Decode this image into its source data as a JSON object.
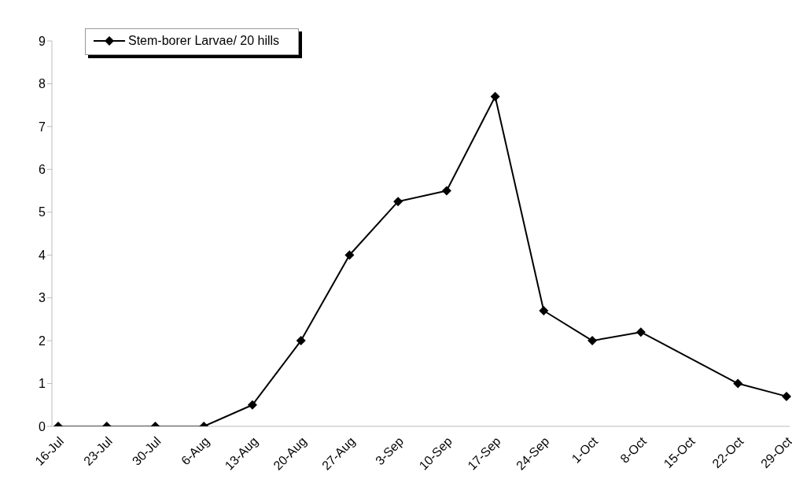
{
  "chart_data": {
    "type": "line",
    "categories": [
      "16-Jul",
      "23-Jul",
      "30-Jul",
      "6-Aug",
      "13-Aug",
      "20-Aug",
      "27-Aug",
      "3-Sep",
      "10-Sep",
      "17-Sep",
      "24-Sep",
      "1-Oct",
      "8-Oct",
      "15-Oct",
      "22-Oct",
      "29-Oct"
    ],
    "series": [
      {
        "name": "Stem-borer Larvae/ 20 hills",
        "color": "#000000",
        "values": [
          0,
          0,
          0,
          0,
          0.5,
          2,
          4,
          5.25,
          5.5,
          7.7,
          2.7,
          2,
          2.2,
          null,
          1,
          0.7
        ]
      }
    ],
    "ylim": [
      0,
      9
    ],
    "yticks": [
      0,
      1,
      2,
      3,
      4,
      5,
      6,
      7,
      8,
      9
    ],
    "grid": false,
    "legend": "top left",
    "marker": "diamond",
    "line_style": "solid"
  }
}
